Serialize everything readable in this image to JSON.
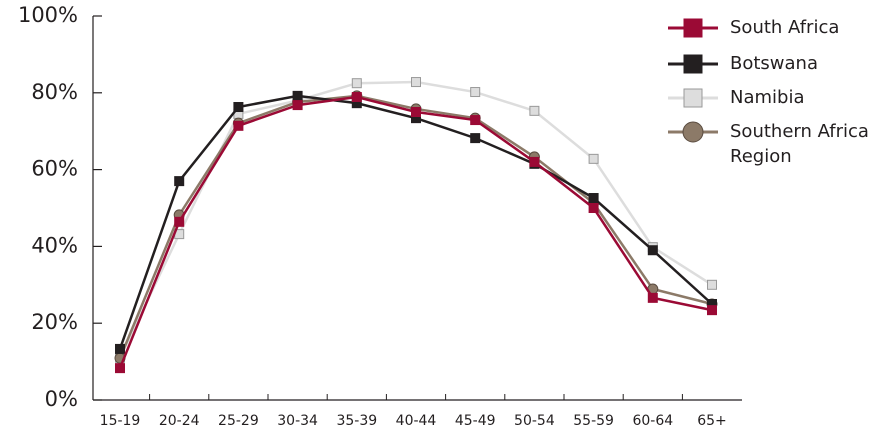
{
  "chart_data": {
    "type": "line",
    "categories": [
      "15-19",
      "20-24",
      "25-29",
      "30-34",
      "35-39",
      "40-44",
      "45-49",
      "50-54",
      "55-59",
      "60-64",
      "65+"
    ],
    "series": [
      {
        "name": "South Africa",
        "color": "#9b0a35",
        "marker": "square",
        "values": [
          8.3,
          46.4,
          71.4,
          76.8,
          78.9,
          75.0,
          72.9,
          62.0,
          50.0,
          26.6,
          23.4
        ]
      },
      {
        "name": "Botswana",
        "color": "#231f20",
        "marker": "square",
        "values": [
          13.3,
          57.0,
          76.3,
          79.2,
          77.3,
          73.4,
          68.2,
          61.5,
          52.6,
          39.0,
          25.0
        ]
      },
      {
        "name": "Namibia",
        "color": "#dddddd",
        "marker": "square",
        "values": [
          11.0,
          43.2,
          74.5,
          78.0,
          82.5,
          82.8,
          80.2,
          75.3,
          62.8,
          39.8,
          30.0
        ]
      },
      {
        "name": "Southern Africa Region",
        "color": "#8c7a68",
        "marker": "circle",
        "values": [
          10.9,
          48.2,
          72.1,
          77.6,
          79.2,
          75.8,
          73.4,
          63.3,
          51.3,
          28.9,
          25.0
        ]
      }
    ],
    "ylim": [
      0,
      100
    ],
    "yticks": [
      {
        "value": 0,
        "label": "0%"
      },
      {
        "value": 20,
        "label": "20%"
      },
      {
        "value": 40,
        "label": "40%"
      },
      {
        "value": 60,
        "label": "60%"
      },
      {
        "value": 80,
        "label": "80%"
      },
      {
        "value": 100,
        "label": "100%"
      }
    ],
    "grid": false,
    "legend": "right"
  }
}
